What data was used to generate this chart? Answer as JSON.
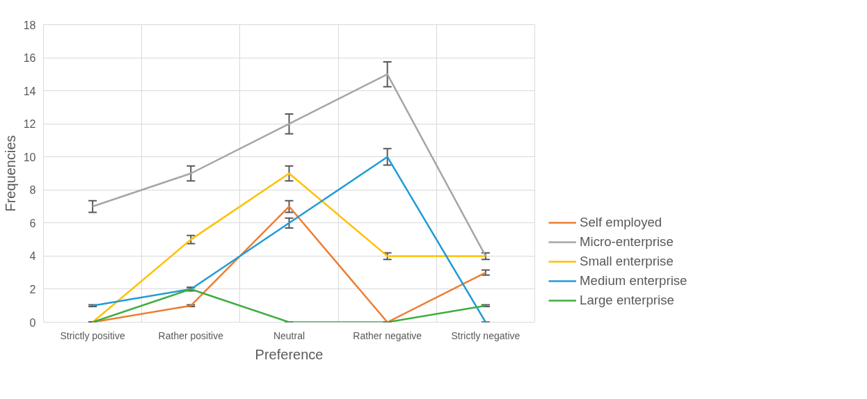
{
  "chart_data": {
    "type": "line",
    "xlabel": "Preference",
    "ylabel": "Frequencies",
    "categories": [
      "Strictly positive",
      "Rather positive",
      "Neutral",
      "Rather negative",
      "Strictly negative"
    ],
    "series": [
      {
        "name": "Self employed",
        "color": "#ed7d31",
        "values": [
          0,
          1,
          7,
          0,
          3
        ],
        "errors": [
          0,
          0.05,
          0.35,
          0,
          0.15
        ]
      },
      {
        "name": "Micro-enterprise",
        "color": "#a5a5a5",
        "values": [
          7,
          9,
          12,
          15,
          4
        ],
        "errors": [
          0.35,
          0.45,
          0.6,
          0.75,
          0.2
        ]
      },
      {
        "name": "Small enterprise",
        "color": "#ffc000",
        "values": [
          0,
          5,
          9,
          4,
          4
        ],
        "errors": [
          0,
          0.25,
          0.45,
          0.2,
          null
        ]
      },
      {
        "name": "Medium enterprise",
        "color": "#1f9bd7",
        "values": [
          1,
          2,
          6,
          10,
          0
        ],
        "errors": [
          0.05,
          0.1,
          0.3,
          0.5,
          0
        ]
      },
      {
        "name": "Large enterprise",
        "color": "#3fae3f",
        "values": [
          0,
          2,
          0,
          0,
          1
        ],
        "errors": [
          0,
          0.1,
          0,
          0,
          0.05
        ]
      }
    ],
    "ylim": [
      0,
      18
    ],
    "yticks": [
      0,
      2,
      4,
      6,
      8,
      10,
      12,
      14,
      16,
      18
    ],
    "grid": true,
    "legend": "right",
    "marker": "none",
    "line_style": "solid"
  }
}
